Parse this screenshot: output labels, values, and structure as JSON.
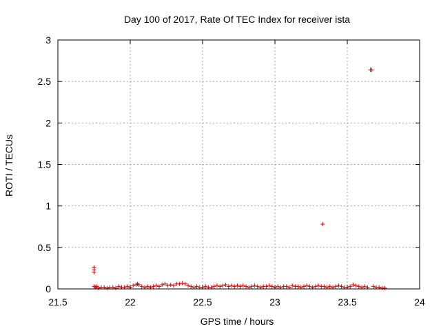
{
  "chart_data": {
    "type": "scatter",
    "title": "Day 100 of 2017, Rate Of TEC Index for receiver ista",
    "xlabel": "GPS time / hours",
    "ylabel": "ROTI / TECUs",
    "xlim": [
      21.5,
      24
    ],
    "ylim": [
      0,
      3
    ],
    "x_ticks": [
      "21.5",
      "22",
      "22.5",
      "23",
      "23.5",
      "24"
    ],
    "y_ticks": [
      "0",
      "0.5",
      "1",
      "1.5",
      "2",
      "2.5",
      "3"
    ],
    "grid": true,
    "marker": "+",
    "color": "#cc0000",
    "series": [
      {
        "x": [
          21.75,
          21.75,
          21.75,
          21.75,
          21.76,
          21.77,
          21.78,
          21.8,
          21.82,
          21.84,
          21.86,
          21.88,
          21.9,
          21.92,
          21.94,
          21.96,
          21.98,
          22.0,
          22.02,
          22.04,
          22.05,
          22.06,
          22.08,
          22.1,
          22.12,
          22.14,
          22.16,
          22.18,
          22.2,
          22.22,
          22.24,
          22.26,
          22.28,
          22.3,
          22.32,
          22.34,
          22.36,
          22.38,
          22.4,
          22.42,
          22.44,
          22.46,
          22.48,
          22.5,
          22.52,
          22.54,
          22.56,
          22.58,
          22.6,
          22.62,
          22.64,
          22.66,
          22.68,
          22.7,
          22.72,
          22.74,
          22.76,
          22.78,
          22.8,
          22.82,
          22.84,
          22.86,
          22.88,
          22.9,
          22.92,
          22.94,
          22.96,
          22.98,
          23.0,
          23.02,
          23.04,
          23.06,
          23.08,
          23.1,
          23.12,
          23.14,
          23.16,
          23.18,
          23.2,
          23.22,
          23.24,
          23.26,
          23.28,
          23.3,
          23.32,
          23.33,
          23.34,
          23.36,
          23.38,
          23.4,
          23.42,
          23.44,
          23.46,
          23.48,
          23.5,
          23.52,
          23.54,
          23.56,
          23.58,
          23.6,
          23.62,
          23.64,
          23.66,
          23.67,
          23.68,
          23.7,
          23.72,
          23.74,
          23.76
        ],
        "y": [
          0.26,
          0.23,
          0.2,
          0.03,
          0.02,
          0.03,
          0.01,
          0.02,
          0.02,
          0.01,
          0.02,
          0.02,
          0.01,
          0.03,
          0.02,
          0.02,
          0.03,
          0.02,
          0.04,
          0.05,
          0.06,
          0.05,
          0.03,
          0.02,
          0.03,
          0.02,
          0.03,
          0.04,
          0.03,
          0.05,
          0.06,
          0.04,
          0.05,
          0.04,
          0.06,
          0.06,
          0.07,
          0.06,
          0.04,
          0.03,
          0.02,
          0.03,
          0.02,
          0.02,
          0.03,
          0.02,
          0.02,
          0.03,
          0.04,
          0.03,
          0.04,
          0.05,
          0.03,
          0.04,
          0.03,
          0.04,
          0.03,
          0.04,
          0.03,
          0.02,
          0.03,
          0.04,
          0.03,
          0.02,
          0.03,
          0.03,
          0.04,
          0.03,
          0.02,
          0.03,
          0.02,
          0.03,
          0.03,
          0.02,
          0.04,
          0.03,
          0.03,
          0.02,
          0.03,
          0.04,
          0.03,
          0.02,
          0.03,
          0.04,
          0.03,
          0.78,
          0.03,
          0.02,
          0.03,
          0.02,
          0.03,
          0.04,
          0.03,
          0.02,
          0.02,
          0.03,
          0.05,
          0.04,
          0.03,
          0.02,
          0.03,
          0.02,
          2.64,
          2.64,
          0.03,
          0.02,
          0.02,
          0.01,
          0.01
        ]
      }
    ]
  }
}
